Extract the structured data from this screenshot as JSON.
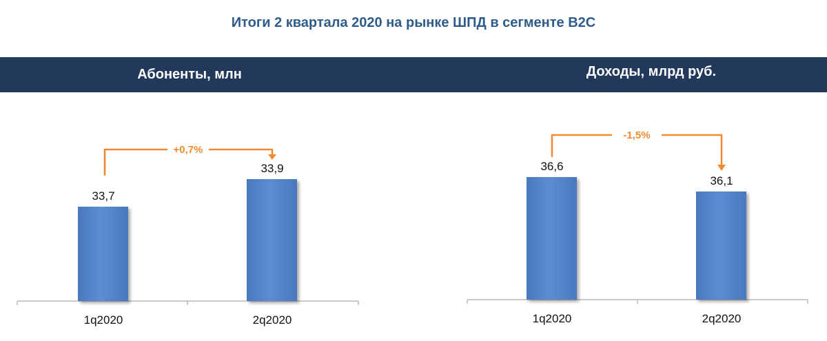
{
  "title": "Итоги 2 квартала 2020 на рынке ШПД в сегменте B2C",
  "colors": {
    "title": "#2E5C8A",
    "header_band": "#22395B",
    "bar": "#5B8BD0",
    "bar_edge": "#3F6FB5",
    "arrow": "#F08A2C",
    "axis": "#9A9A9A"
  },
  "chart_data": [
    {
      "type": "bar",
      "title": "Абоненты, млн",
      "categories": [
        "1q2020",
        "2q2020"
      ],
      "values": [
        33.7,
        33.9
      ],
      "value_labels": [
        "33,7",
        "33,9"
      ],
      "change_label": "+0,7%"
    },
    {
      "type": "bar",
      "title": "Доходы, млрд руб.",
      "categories": [
        "1q2020",
        "2q2020"
      ],
      "values": [
        36.6,
        36.1
      ],
      "value_labels": [
        "36,6",
        "36,1"
      ],
      "change_label": "-1,5%"
    }
  ]
}
